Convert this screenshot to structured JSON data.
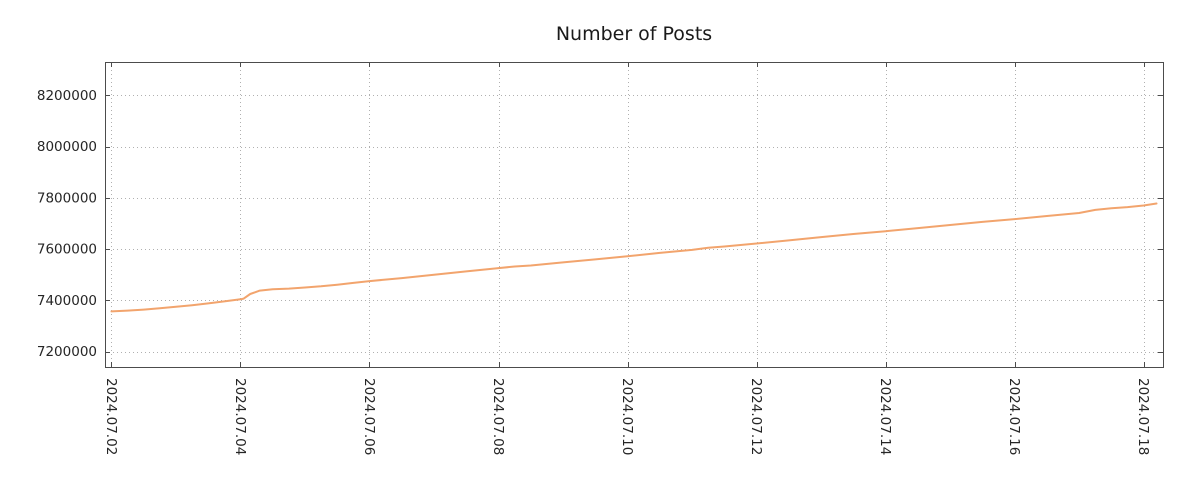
{
  "title": "Number of Posts",
  "chart_data": {
    "type": "line",
    "title": "Number of Posts",
    "xlabel": "",
    "ylabel": "",
    "legend": "none",
    "grid": true,
    "grid_style": "dotted",
    "line_color": "#f2a46d",
    "frame_color": "#4c4c4c",
    "grid_color": "#b0b0b0",
    "x_tick_labels": [
      "2024.07.02",
      "2024.07.04",
      "2024.07.06",
      "2024.07.08",
      "2024.07.10",
      "2024.07.12",
      "2024.07.14",
      "2024.07.16",
      "2024.07.18"
    ],
    "x_tick_positions_days": [
      0,
      2,
      4,
      6,
      8,
      10,
      12,
      14,
      16
    ],
    "y_tick_labels": [
      "7200000",
      "7400000",
      "7600000",
      "7800000",
      "8000000",
      "8200000"
    ],
    "y_ticks": [
      7200000,
      7400000,
      7600000,
      7800000,
      8000000,
      8200000
    ],
    "xlim_days": [
      -0.1,
      16.3
    ],
    "ylim": [
      7140000,
      8330000
    ],
    "series": [
      {
        "name": "Number of Posts",
        "x_days": [
          0.0,
          0.25,
          0.5,
          0.75,
          1.0,
          1.25,
          1.5,
          1.75,
          2.0,
          2.05,
          2.15,
          2.3,
          2.5,
          2.75,
          3.0,
          3.25,
          3.5,
          3.75,
          4.0,
          4.5,
          5.0,
          5.5,
          6.0,
          6.25,
          6.5,
          7.0,
          7.5,
          8.0,
          8.5,
          9.0,
          9.25,
          9.5,
          10.0,
          10.5,
          11.0,
          11.5,
          12.0,
          12.5,
          13.0,
          13.5,
          14.0,
          14.5,
          15.0,
          15.25,
          15.5,
          15.75,
          16.0,
          16.2
        ],
        "values": [
          7357000,
          7360000,
          7364000,
          7369000,
          7375000,
          7381000,
          7388000,
          7396000,
          7404000,
          7407000,
          7425000,
          7438000,
          7443000,
          7446000,
          7450000,
          7455000,
          7461000,
          7468000,
          7475000,
          7487000,
          7500000,
          7513000,
          7526000,
          7532000,
          7536000,
          7548000,
          7560000,
          7572000,
          7585000,
          7597000,
          7605000,
          7610000,
          7622000,
          7634000,
          7647000,
          7659000,
          7670000,
          7682000,
          7694000,
          7706000,
          7717000,
          7729000,
          7741000,
          7753000,
          7759000,
          7764000,
          7770000,
          7778000
        ]
      }
    ]
  }
}
